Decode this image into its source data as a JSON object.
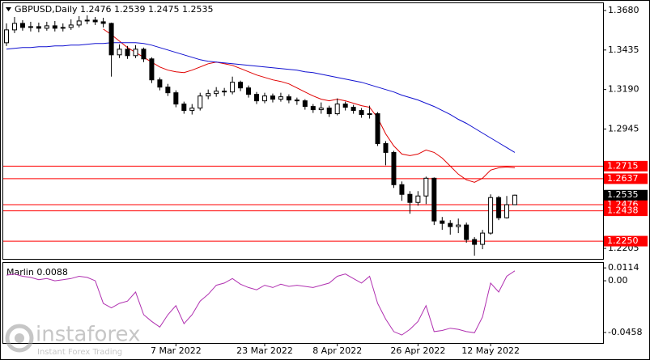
{
  "chart_data": [
    {
      "type": "candlestick",
      "title": "GBPUSD,Daily  1.2476 1.2539 1.2475 1.2535",
      "categories": [
        null,
        null,
        null,
        null,
        null,
        null,
        null,
        null,
        null,
        null,
        null,
        null,
        null,
        null,
        null,
        null,
        null,
        null,
        null,
        null,
        null,
        "7 Mar 2022",
        null,
        null,
        null,
        null,
        null,
        null,
        null,
        null,
        null,
        null,
        "23 Mar 2022",
        null,
        null,
        null,
        null,
        null,
        null,
        null,
        null,
        "8 Apr 2022",
        null,
        null,
        null,
        null,
        null,
        null,
        null,
        null,
        null,
        "26 Apr 2022",
        null,
        null,
        null,
        null,
        null,
        null,
        null,
        null,
        "12 May 2022",
        null,
        null,
        null
      ],
      "open": [
        1.348,
        1.356,
        1.36,
        1.3575,
        1.358,
        1.357,
        1.3585,
        1.357,
        1.3575,
        1.359,
        1.3615,
        1.362,
        1.361,
        1.36,
        1.3405,
        1.344,
        1.34,
        1.344,
        1.338,
        1.325,
        1.3205,
        1.317,
        1.31,
        1.306,
        1.3075,
        1.315,
        1.3165,
        1.318,
        1.3175,
        1.3235,
        1.32,
        1.316,
        1.312,
        1.315,
        1.313,
        1.3145,
        1.3125,
        1.312,
        1.3085,
        1.3065,
        1.3075,
        1.304,
        1.31,
        1.308,
        1.306,
        1.3035,
        1.304,
        1.2855,
        1.28,
        1.26,
        1.254,
        1.249,
        1.253,
        1.264,
        1.2375,
        1.236,
        1.234,
        1.235,
        1.226,
        1.223,
        1.23,
        1.252,
        1.2395,
        1.2476
      ],
      "high": [
        1.36,
        1.364,
        1.362,
        1.361,
        1.3605,
        1.361,
        1.3615,
        1.36,
        1.3625,
        1.3645,
        1.365,
        1.364,
        1.3635,
        1.3605,
        1.347,
        1.346,
        1.3465,
        1.345,
        1.339,
        1.3265,
        1.3225,
        1.3185,
        1.3115,
        1.31,
        1.317,
        1.319,
        1.3205,
        1.32,
        1.327,
        1.3245,
        1.3215,
        1.3175,
        1.317,
        1.3165,
        1.317,
        1.316,
        1.314,
        1.313,
        1.31,
        1.311,
        1.309,
        1.3135,
        1.3115,
        1.3095,
        1.3075,
        1.309,
        1.305,
        1.287,
        1.281,
        1.262,
        1.256,
        1.256,
        1.265,
        1.2645,
        1.24,
        1.238,
        1.239,
        1.2365,
        1.2275,
        1.232,
        1.254,
        1.253,
        1.253,
        1.2539
      ],
      "low": [
        1.346,
        1.354,
        1.3555,
        1.355,
        1.3545,
        1.3555,
        1.355,
        1.355,
        1.356,
        1.3575,
        1.3595,
        1.359,
        1.3575,
        1.327,
        1.3385,
        1.338,
        1.3385,
        1.336,
        1.323,
        1.3185,
        1.315,
        1.308,
        1.304,
        1.3035,
        1.306,
        1.313,
        1.3145,
        1.315,
        1.316,
        1.318,
        1.314,
        1.31,
        1.3105,
        1.311,
        1.3115,
        1.3105,
        1.3095,
        1.3065,
        1.3045,
        1.304,
        1.302,
        1.303,
        1.306,
        1.304,
        1.3015,
        1.301,
        1.284,
        1.272,
        1.258,
        1.25,
        1.242,
        1.247,
        1.248,
        1.235,
        1.232,
        1.229,
        1.23,
        1.224,
        1.216,
        1.22,
        1.229,
        1.238,
        1.239,
        1.2475
      ],
      "close": [
        1.356,
        1.36,
        1.3575,
        1.358,
        1.357,
        1.3585,
        1.357,
        1.3575,
        1.359,
        1.3615,
        1.362,
        1.361,
        1.36,
        1.3405,
        1.344,
        1.34,
        1.344,
        1.338,
        1.325,
        1.3205,
        1.317,
        1.31,
        1.306,
        1.3075,
        1.315,
        1.3165,
        1.318,
        1.3175,
        1.3235,
        1.32,
        1.316,
        1.312,
        1.315,
        1.313,
        1.3145,
        1.3125,
        1.312,
        1.3085,
        1.3065,
        1.3075,
        1.304,
        1.31,
        1.308,
        1.306,
        1.3035,
        1.304,
        1.2855,
        1.28,
        1.26,
        1.254,
        1.249,
        1.253,
        1.264,
        1.2375,
        1.236,
        1.234,
        1.235,
        1.226,
        1.223,
        1.23,
        1.252,
        1.2395,
        1.2476,
        1.2535
      ],
      "series": [
        {
          "color": "#e00000",
          "values": [
            null,
            null,
            null,
            null,
            null,
            null,
            null,
            null,
            null,
            null,
            null,
            null,
            1.3565,
            1.353,
            1.349,
            1.345,
            1.342,
            1.339,
            1.336,
            1.333,
            1.331,
            1.33,
            1.3295,
            1.331,
            1.333,
            1.335,
            1.336,
            1.335,
            1.334,
            1.332,
            1.33,
            1.328,
            1.3265,
            1.325,
            1.324,
            1.3225,
            1.32,
            1.3175,
            1.315,
            1.313,
            1.312,
            1.313,
            1.312,
            1.3105,
            1.309,
            1.308,
            1.3015,
            1.2915,
            1.284,
            1.279,
            1.278,
            1.279,
            1.2815,
            1.28,
            1.2765,
            1.2715,
            1.2665,
            1.263,
            1.2615,
            1.264,
            1.269,
            1.2705,
            1.271,
            1.2705
          ]
        },
        {
          "color": "#1010d0",
          "values": [
            1.344,
            1.3445,
            1.345,
            1.345,
            1.3455,
            1.3455,
            1.346,
            1.346,
            1.3465,
            1.3465,
            1.347,
            1.3475,
            1.3475,
            1.348,
            1.348,
            1.348,
            1.348,
            1.3475,
            1.3465,
            1.345,
            1.3435,
            1.342,
            1.3405,
            1.339,
            1.3375,
            1.3365,
            1.336,
            1.3355,
            1.335,
            1.3345,
            1.334,
            1.3335,
            1.333,
            1.3325,
            1.332,
            1.3315,
            1.331,
            1.33,
            1.3295,
            1.3285,
            1.3275,
            1.3265,
            1.3255,
            1.3245,
            1.3235,
            1.322,
            1.3205,
            1.319,
            1.3175,
            1.3155,
            1.314,
            1.3125,
            1.3105,
            1.3085,
            1.306,
            1.3035,
            1.3005,
            1.298,
            1.295,
            1.292,
            1.289,
            1.286,
            1.283,
            1.28
          ]
        }
      ],
      "levels": [
        {
          "value": 1.2715,
          "color": "#ff0000"
        },
        {
          "value": 1.2637,
          "color": "#ff0000"
        },
        {
          "value": 1.2476,
          "color": "#ff0000"
        },
        {
          "value": 1.2438,
          "color": "#ff0000"
        },
        {
          "value": 1.225,
          "label": "1.2250",
          "color": "#ff0000"
        }
      ],
      "current": {
        "value": 1.2535,
        "color": "#000000"
      },
      "ylim": [
        1.214,
        1.3725
      ],
      "yticks": [
        {
          "value": 1.368,
          "label": "1.3680"
        },
        1.3435,
        {
          "value": 1.319,
          "label": "1.3190"
        },
        1.2945,
        1.2205
      ]
    },
    {
      "type": "line",
      "title": "Marlin 0.0088",
      "color": "#b030b0",
      "values": [
        0.005,
        0.006,
        0.004,
        0.003,
        0.001,
        0.002,
        0.0,
        0.001,
        0.002,
        0.004,
        0.003,
        0.0,
        -0.02,
        -0.024,
        -0.02,
        -0.018,
        -0.01,
        -0.03,
        -0.036,
        -0.041,
        -0.03,
        -0.022,
        -0.038,
        -0.03,
        -0.018,
        -0.012,
        -0.004,
        -0.002,
        0.002,
        -0.003,
        -0.006,
        -0.008,
        -0.004,
        -0.006,
        -0.003,
        -0.005,
        -0.004,
        -0.005,
        -0.006,
        -0.004,
        -0.002,
        0.004,
        0.006,
        0.002,
        -0.002,
        0.004,
        -0.02,
        -0.034,
        -0.045,
        -0.048,
        -0.043,
        -0.036,
        -0.022,
        -0.045,
        -0.044,
        -0.042,
        -0.043,
        -0.045,
        -0.046,
        -0.032,
        -0.002,
        -0.01,
        0.004,
        0.0088
      ],
      "ylim": [
        -0.0551,
        0.0158
      ],
      "yticks": [
        0.0114,
        {
          "value": 0,
          "label": "0.00"
        },
        -0.0458
      ]
    }
  ],
  "watermark": {
    "brand": "instaforex",
    "tagline": "Instant Forex Trading"
  }
}
